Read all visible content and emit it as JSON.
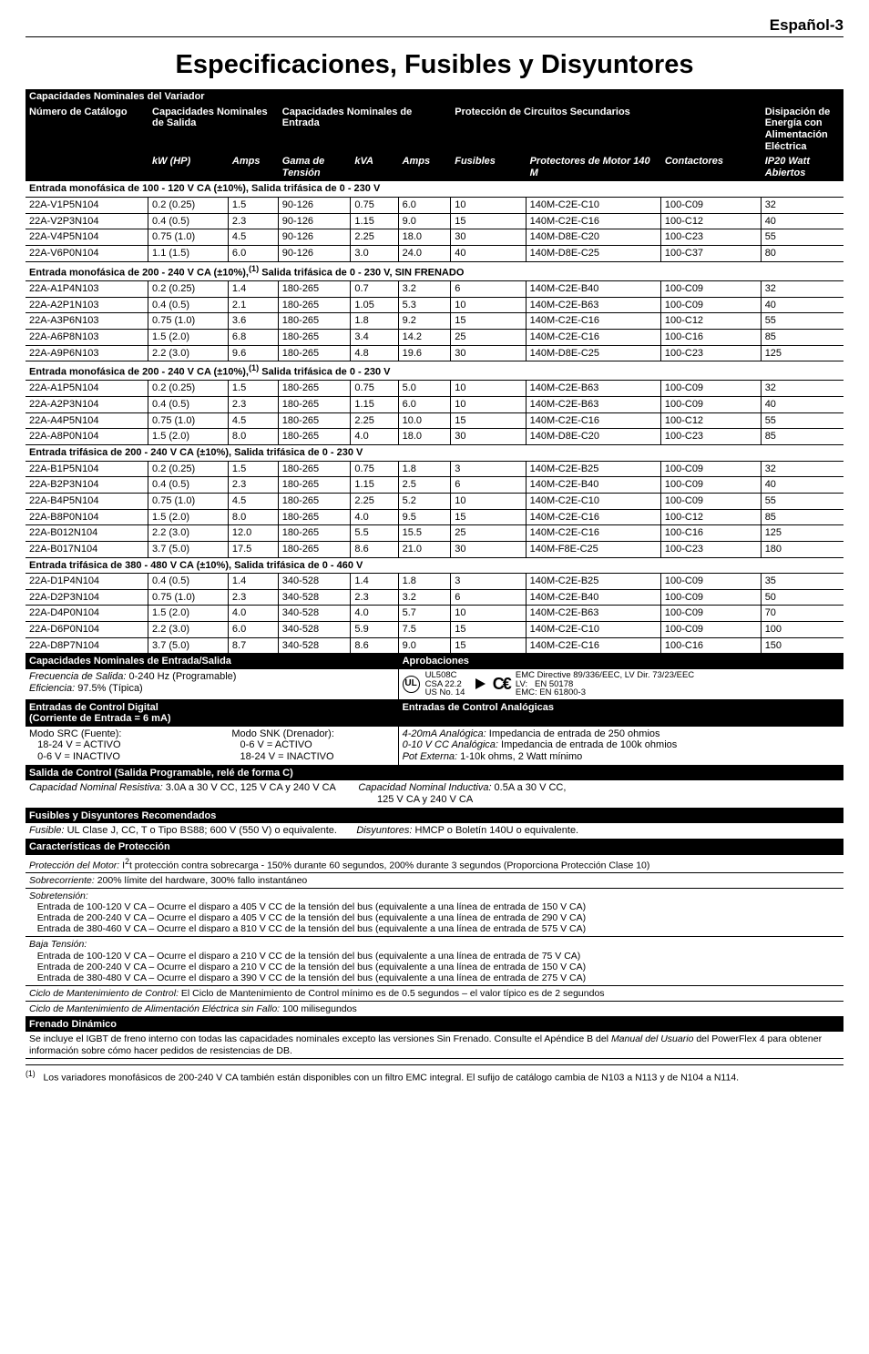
{
  "corner_label": "Español-3",
  "title": "Especificaciones, Fusibles y Disyuntores",
  "section1_header": "Capacidades Nominales del Variador",
  "h": {
    "c1": "Número de Catálogo",
    "c2": "Capacidades Nominales de Salida",
    "c3": "Capacidades Nominales de Entrada",
    "c4": "Protección de Circuitos Secundarios",
    "c5": "Disipación de Energía con Alimentación Eléctrica",
    "kw": "kW (HP)",
    "amps": "Amps",
    "gama": "Gama de Tensión",
    "kva": "kVA",
    "fus": "Fusibles",
    "prot": "Protectores de Motor 140 M",
    "cont": "Contactores",
    "ip": "IP20 Watt Abiertos"
  },
  "groups": [
    {
      "t": "Entrada monofásica de 100 - 120 V CA (±10%), Salida trifásica de 0 - 230 V",
      "rows": [
        [
          "22A-V1P5N104",
          "0.2 (0.25)",
          "1.5",
          "90-126",
          "0.75",
          "6.0",
          "10",
          "140M-C2E-C10",
          "100-C09",
          "32"
        ],
        [
          "22A-V2P3N104",
          "0.4 (0.5)",
          "2.3",
          "90-126",
          "1.15",
          "9.0",
          "15",
          "140M-C2E-C16",
          "100-C12",
          "40"
        ],
        [
          "22A-V4P5N104",
          "0.75 (1.0)",
          "4.5",
          "90-126",
          "2.25",
          "18.0",
          "30",
          "140M-D8E-C20",
          "100-C23",
          "55"
        ],
        [
          "22A-V6P0N104",
          "1.1 (1.5)",
          "6.0",
          "90-126",
          "3.0",
          "24.0",
          "40",
          "140M-D8E-C25",
          "100-C37",
          "80"
        ]
      ]
    },
    {
      "t": "Entrada monofásica de 200 - 240 V CA (±10%),<sup>(1)</sup> Salida trifásica de 0 - 230 V, SIN FRENADO",
      "rows": [
        [
          "22A-A1P4N103",
          "0.2 (0.25)",
          "1.4",
          "180-265",
          "0.7",
          "3.2",
          "6",
          "140M-C2E-B40",
          "100-C09",
          "32"
        ],
        [
          "22A-A2P1N103",
          "0.4 (0.5)",
          "2.1",
          "180-265",
          "1.05",
          "5.3",
          "10",
          "140M-C2E-B63",
          "100-C09",
          "40"
        ],
        [
          "22A-A3P6N103",
          "0.75 (1.0)",
          "3.6",
          "180-265",
          "1.8",
          "9.2",
          "15",
          "140M-C2E-C16",
          "100-C12",
          "55"
        ],
        [
          "22A-A6P8N103",
          "1.5 (2.0)",
          "6.8",
          "180-265",
          "3.4",
          "14.2",
          "25",
          "140M-C2E-C16",
          "100-C16",
          "85"
        ],
        [
          "22A-A9P6N103",
          "2.2 (3.0)",
          "9.6",
          "180-265",
          "4.8",
          "19.6",
          "30",
          "140M-D8E-C25",
          "100-C23",
          "125"
        ]
      ]
    },
    {
      "t": "Entrada monofásica de 200 - 240 V CA (±10%),<sup>(1)</sup> Salida trifásica de 0 - 230 V",
      "rows": [
        [
          "22A-A1P5N104",
          "0.2 (0.25)",
          "1.5",
          "180-265",
          "0.75",
          "5.0",
          "10",
          "140M-C2E-B63",
          "100-C09",
          "32"
        ],
        [
          "22A-A2P3N104",
          "0.4 (0.5)",
          "2.3",
          "180-265",
          "1.15",
          "6.0",
          "10",
          "140M-C2E-B63",
          "100-C09",
          "40"
        ],
        [
          "22A-A4P5N104",
          "0.75 (1.0)",
          "4.5",
          "180-265",
          "2.25",
          "10.0",
          "15",
          "140M-C2E-C16",
          "100-C12",
          "55"
        ],
        [
          "22A-A8P0N104",
          "1.5 (2.0)",
          "8.0",
          "180-265",
          "4.0",
          "18.0",
          "30",
          "140M-D8E-C20",
          "100-C23",
          "85"
        ]
      ]
    },
    {
      "t": "Entrada trifásica de 200 - 240 V CA (±10%), Salida trifásica de 0 - 230 V",
      "rows": [
        [
          "22A-B1P5N104",
          "0.2 (0.25)",
          "1.5",
          "180-265",
          "0.75",
          "1.8",
          "3",
          "140M-C2E-B25",
          "100-C09",
          "32"
        ],
        [
          "22A-B2P3N104",
          "0.4 (0.5)",
          "2.3",
          "180-265",
          "1.15",
          "2.5",
          "6",
          "140M-C2E-B40",
          "100-C09",
          "40"
        ],
        [
          "22A-B4P5N104",
          "0.75 (1.0)",
          "4.5",
          "180-265",
          "2.25",
          "5.2",
          "10",
          "140M-C2E-C10",
          "100-C09",
          "55"
        ],
        [
          "22A-B8P0N104",
          "1.5 (2.0)",
          "8.0",
          "180-265",
          "4.0",
          "9.5",
          "15",
          "140M-C2E-C16",
          "100-C12",
          "85"
        ],
        [
          "22A-B012N104",
          "2.2 (3.0)",
          "12.0",
          "180-265",
          "5.5",
          "15.5",
          "25",
          "140M-C2E-C16",
          "100-C16",
          "125"
        ],
        [
          "22A-B017N104",
          "3.7 (5.0)",
          "17.5",
          "180-265",
          "8.6",
          "21.0",
          "30",
          "140M-F8E-C25",
          "100-C23",
          "180"
        ]
      ]
    },
    {
      "t": "Entrada trifásica de 380 - 480 V CA (±10%), Salida trifásica de 0 - 460 V",
      "rows": [
        [
          "22A-D1P4N104",
          "0.4 (0.5)",
          "1.4",
          "340-528",
          "1.4",
          "1.8",
          "3",
          "140M-C2E-B25",
          "100-C09",
          "35"
        ],
        [
          "22A-D2P3N104",
          "0.75 (1.0)",
          "2.3",
          "340-528",
          "2.3",
          "3.2",
          "6",
          "140M-C2E-B40",
          "100-C09",
          "50"
        ],
        [
          "22A-D4P0N104",
          "1.5 (2.0)",
          "4.0",
          "340-528",
          "4.0",
          "5.7",
          "10",
          "140M-C2E-B63",
          "100-C09",
          "70"
        ],
        [
          "22A-D6P0N104",
          "2.2 (3.0)",
          "6.0",
          "340-528",
          "5.9",
          "7.5",
          "15",
          "140M-C2E-C10",
          "100-C09",
          "100"
        ],
        [
          "22A-D8P7N104",
          "3.7 (5.0)",
          "8.7",
          "340-528",
          "8.6",
          "9.0",
          "15",
          "140M-C2E-C16",
          "100-C16",
          "150"
        ]
      ]
    }
  ],
  "es_header": "Capacidades Nominales de Entrada/Salida",
  "aprob": "Aprobaciones",
  "freq_l": "<i>Frecuencia de Salida:</i> 0-240 Hz (Programable)",
  "efic": "<i>Eficiencia:</i> 97.5% (Típica)",
  "ul": "UL508C<br>CSA 22.2<br>US No. 14",
  "emc": "EMC Directive 89/336/EEC, LV Dir. 73/23/EEC<br>LV:&nbsp;&nbsp;&nbsp;EN 50178<br>EMC: EN 61800-3",
  "dig_h": "Entradas de Control Digital<br>(Corriente de Entrada = 6 mA)",
  "ana_h": "Entradas de Control Analógicas",
  "dig_c1": "Modo SRC (Fuente):<br>&nbsp;&nbsp;&nbsp;18-24 V = ACTIVO<br>&nbsp;&nbsp;&nbsp;0-6 V = INACTIVO",
  "dig_c2": "Modo SNK (Drenador):<br>&nbsp;&nbsp;&nbsp;0-6 V = ACTIVO<br>&nbsp;&nbsp;&nbsp;18-24 V = INACTIVO",
  "ana_c": "<i>4-20mA Analógica:</i> Impedancia de entrada de 250 ohmios<br><i>0-10 V CC Analógica:</i> Impedancia de entrada de 100k ohmios<br><i>Pot Externa:</i> 1-10k ohms, 2 Watt mínimo",
  "sal_h": "Salida de Control (Salida Programable, relé de forma C)",
  "sal_c": "<i>Capacidad Nominal Resistiva:</i> 3.0A a 30 V CC, 125 V CA y 240 V CA&nbsp;&nbsp;&nbsp;&nbsp;&nbsp;&nbsp;&nbsp;&nbsp;<i>Capacidad Nominal Inductiva:</i> 0.5A a 30 V CC,<br>&nbsp;&nbsp;&nbsp;&nbsp;&nbsp;&nbsp;&nbsp;&nbsp;&nbsp;&nbsp;&nbsp;&nbsp;&nbsp;&nbsp;&nbsp;&nbsp;&nbsp;&nbsp;&nbsp;&nbsp;&nbsp;&nbsp;&nbsp;&nbsp;&nbsp;&nbsp;&nbsp;&nbsp;&nbsp;&nbsp;&nbsp;&nbsp;&nbsp;&nbsp;&nbsp;&nbsp;&nbsp;&nbsp;&nbsp;&nbsp;&nbsp;&nbsp;&nbsp;&nbsp;&nbsp;&nbsp;&nbsp;&nbsp;&nbsp;&nbsp;&nbsp;&nbsp;&nbsp;&nbsp;&nbsp;&nbsp;&nbsp;&nbsp;&nbsp;&nbsp;&nbsp;&nbsp;&nbsp;&nbsp;&nbsp;&nbsp;&nbsp;&nbsp;&nbsp;&nbsp;&nbsp;&nbsp;&nbsp;&nbsp;&nbsp;&nbsp;&nbsp;&nbsp;&nbsp;&nbsp;&nbsp;&nbsp;&nbsp;&nbsp;&nbsp;&nbsp;&nbsp;&nbsp;&nbsp;&nbsp;&nbsp;&nbsp;&nbsp;&nbsp;&nbsp;&nbsp;&nbsp;&nbsp;&nbsp;&nbsp;&nbsp;&nbsp;&nbsp;&nbsp;&nbsp;&nbsp;&nbsp;&nbsp;&nbsp;&nbsp;&nbsp;&nbsp;&nbsp;&nbsp;&nbsp;&nbsp;&nbsp;&nbsp;&nbsp;&nbsp;&nbsp;&nbsp;&nbsp;&nbsp;&nbsp;125 V CA y 240 V CA",
  "fus_h": "Fusibles y Disyuntores Recomendados",
  "fus_c": "<i>Fusible:</i> UL Clase J, CC, T o Tipo BS88; 600 V (550 V) o equivalente.&nbsp;&nbsp;&nbsp;&nbsp;&nbsp;&nbsp;&nbsp;<i>Disyuntores:</i> HMCP o Boletín 140U o equivalente.",
  "car_h": "Características de Protección",
  "car_rows": [
    "<i>Protección del Motor:</i> I<sup>2</sup>t protección contra sobrecarga - 150% durante 60 segundos, 200% durante 3 segundos (Proporciona Protección Clase 10)",
    "<i>Sobrecorriente:</i> 200% límite del hardware, 300% fallo instantáneo",
    "<i>Sobretensión:</i><br>&nbsp;&nbsp;&nbsp;Entrada de 100-120 V CA – Ocurre el disparo a 405 V CC de la tensión del bus (equivalente a una línea de entrada de 150 V CA)<br>&nbsp;&nbsp;&nbsp;Entrada de 200-240 V CA – Ocurre el disparo a 405 V CC de la tensión del bus (equivalente a una línea de entrada de 290 V CA)<br>&nbsp;&nbsp;&nbsp;Entrada de 380-460 V CA – Ocurre el disparo a 810 V CC de la tensión del bus (equivalente a una línea de entrada de 575 V CA)",
    "<i>Baja Tensión:</i><br>&nbsp;&nbsp;&nbsp;Entrada de 100-120 V CA – Ocurre el disparo a 210 V CC de la tensión del bus (equivalente a una línea de entrada de 75 V CA)<br>&nbsp;&nbsp;&nbsp;Entrada de 200-240 V CA – Ocurre el disparo a 210 V CC de la tensión del bus (equivalente a una línea de entrada de 150 V CA)<br>&nbsp;&nbsp;&nbsp;Entrada de 380-480 V CA – Ocurre el disparo a 390 V CC de la tensión del bus (equivalente a una línea de entrada de 275 V CA)",
    "<i>Ciclo de Mantenimiento de Control:</i> El Ciclo de Mantenimiento de Control mínimo es de 0.5 segundos – el valor típico es de 2 segundos",
    "<i>Ciclo de Mantenimiento de Alimentación Eléctrica sin Fallo:</i> 100 milisegundos"
  ],
  "fren_h": "Frenado Dinámico",
  "fren_c": "Se incluye el IGBT de freno interno con todas las capacidades nominales excepto las versiones Sin Frenado. Consulte el Apéndice B del <i>Manual del Usuario</i> del PowerFlex 4 para obtener información sobre cómo hacer pedidos de resistencias de DB.",
  "footnote": "<sup>(1)</sup>&nbsp;&nbsp;&nbsp;Los variadores monofásicos de 200-240 V CA también están disponibles con un filtro EMC integral. El sufijo de catálogo cambia de N103 a N113 y de N104 a N114."
}
